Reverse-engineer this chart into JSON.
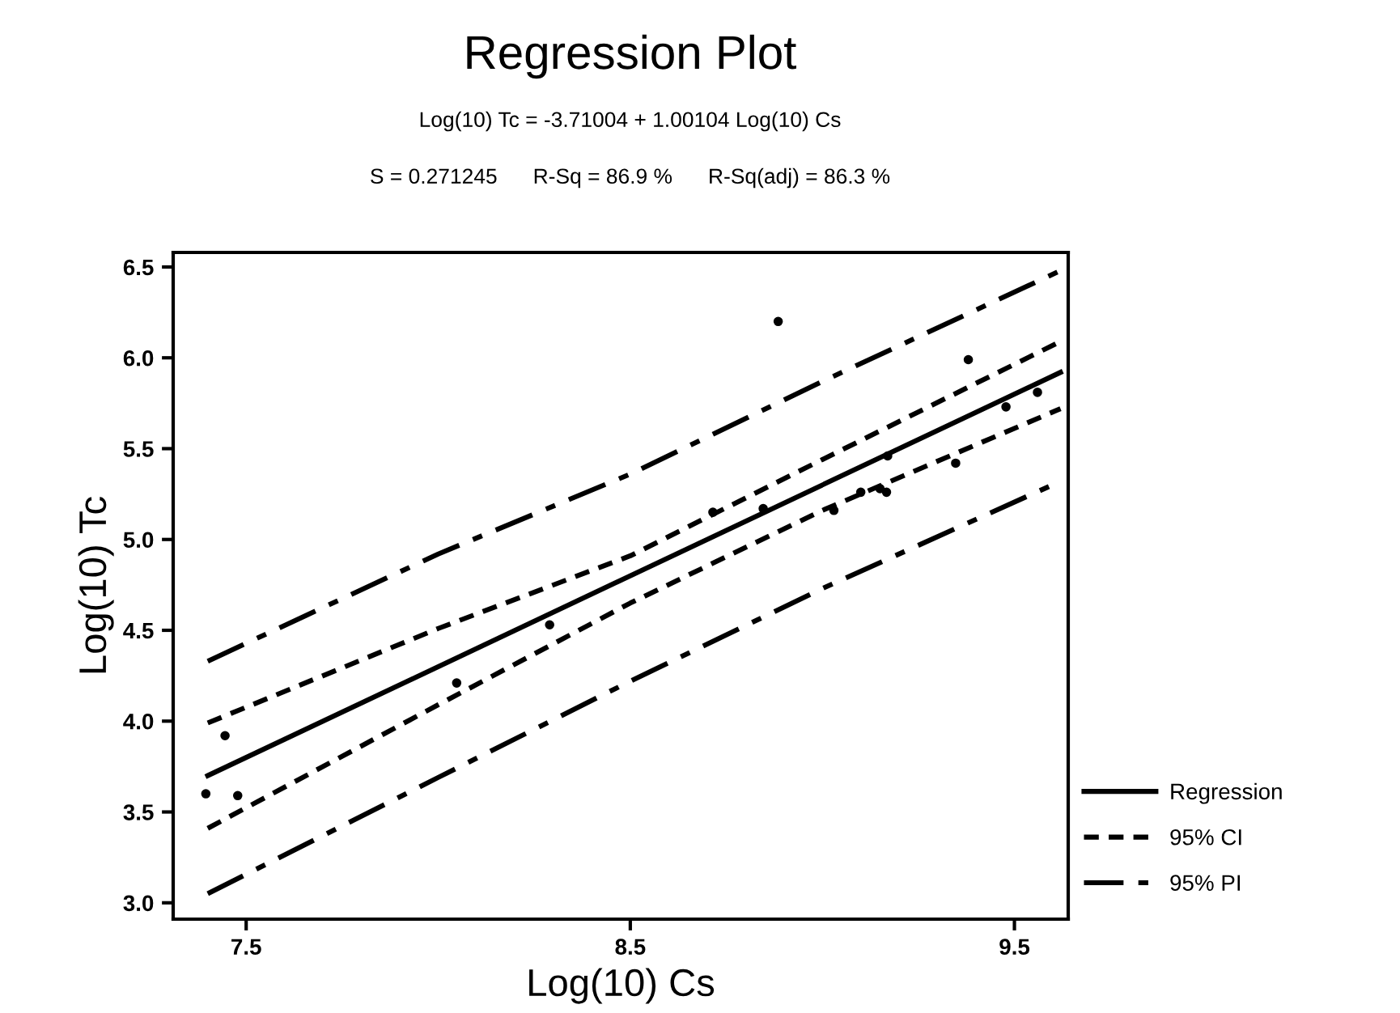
{
  "chart_data": {
    "type": "line",
    "title": "Regression Plot",
    "subtitle": "Log(10) Tc = -3.71004 + 1.00104 Log(10) Cs",
    "annotations": [
      "S = 0.271245      R-Sq = 86.9 %      R-Sq(adj) = 86.3 %"
    ],
    "xlabel": "Log(10) Cs",
    "ylabel": "Log(10) Tc",
    "xlim": [
      7.31,
      9.64
    ],
    "ylim": [
      2.91,
      6.58
    ],
    "xticks": [
      7.5,
      8.5,
      9.5
    ],
    "yticks": [
      {
        "value": 3,
        "label": "3.0"
      },
      3.5,
      {
        "value": 4,
        "label": "4.0"
      },
      4.5,
      {
        "value": 5,
        "label": "5.0"
      },
      5.5,
      {
        "value": 6,
        "label": "6.0"
      },
      6.5
    ],
    "grid": false,
    "legend": "right",
    "series": [
      {
        "type": "scatter",
        "color": "#000000",
        "marker": "circle",
        "x": [
          7.445,
          7.395,
          7.478,
          8.048,
          8.29,
          8.715,
          8.846,
          8.885,
          9.03,
          9.1,
          9.15,
          9.167,
          9.17,
          9.347,
          9.38,
          9.478,
          9.56
        ],
        "values": [
          3.92,
          3.6,
          3.59,
          4.21,
          4.53,
          5.15,
          5.17,
          6.2,
          5.16,
          5.26,
          5.28,
          5.26,
          5.46,
          5.42,
          5.99,
          5.73,
          5.81
        ]
      },
      {
        "name": "Regression",
        "color": "#000000",
        "line_style": "solid",
        "x": [
          7.4,
          9.62
        ],
        "values": [
          3.7,
          5.92
        ]
      },
      {
        "name": "95% CI",
        "color": "#000000",
        "line_style": "dashed",
        "x": [
          7.4,
          8.0,
          8.5,
          9.0,
          9.62
        ],
        "values": [
          3.99,
          4.51,
          4.91,
          5.44,
          6.09
        ]
      },
      {
        "color": "#000000",
        "line_style": "dashed",
        "x": [
          7.4,
          8.0,
          8.5,
          9.0,
          9.62
        ],
        "values": [
          3.41,
          4.09,
          4.65,
          5.16,
          5.72
        ]
      },
      {
        "name": "95% PI",
        "color": "#000000",
        "line_style": "dashdot",
        "x": [
          7.4,
          8.0,
          8.5,
          9.0,
          9.62
        ],
        "values": [
          4.33,
          4.92,
          5.36,
          5.87,
          6.48
        ]
      },
      {
        "color": "#000000",
        "line_style": "dashdot",
        "x": [
          7.4,
          8.0,
          8.5,
          9.0,
          9.62
        ],
        "values": [
          3.05,
          3.69,
          4.22,
          4.73,
          5.32
        ]
      }
    ]
  }
}
